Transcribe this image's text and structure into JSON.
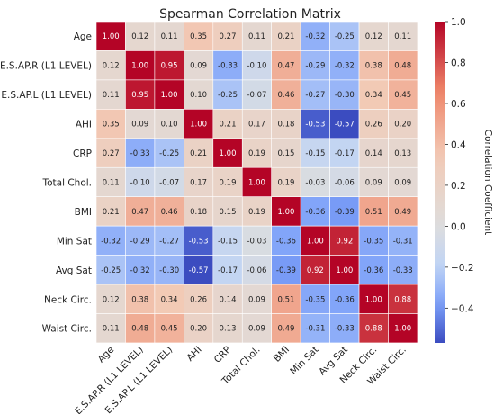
{
  "chart_data": {
    "type": "heatmap",
    "title": "Spearman Correlation Matrix",
    "labels": [
      "Age",
      "E.S.AP.R (L1 LEVEL)",
      "E.S.AP.L (L1 LEVEL)",
      "AHI",
      "CRP",
      "Total Chol.",
      "BMI",
      "Min Sat",
      "Avg Sat",
      "Neck Circ.",
      "Waist Circ."
    ],
    "values": [
      [
        1.0,
        0.12,
        0.11,
        0.35,
        0.27,
        0.11,
        0.21,
        -0.32,
        -0.25,
        0.12,
        0.11
      ],
      [
        0.12,
        1.0,
        0.95,
        0.09,
        -0.33,
        -0.1,
        0.47,
        -0.29,
        -0.32,
        0.38,
        0.48
      ],
      [
        0.11,
        0.95,
        1.0,
        0.1,
        -0.25,
        -0.07,
        0.46,
        -0.27,
        -0.3,
        0.34,
        0.45
      ],
      [
        0.35,
        0.09,
        0.1,
        1.0,
        0.21,
        0.17,
        0.18,
        -0.53,
        -0.57,
        0.26,
        0.2
      ],
      [
        0.27,
        -0.33,
        -0.25,
        0.21,
        1.0,
        0.19,
        0.15,
        -0.15,
        -0.17,
        0.14,
        0.13
      ],
      [
        0.11,
        -0.1,
        -0.07,
        0.17,
        0.19,
        1.0,
        0.19,
        -0.03,
        -0.06,
        0.09,
        0.09
      ],
      [
        0.21,
        0.47,
        0.46,
        0.18,
        0.15,
        0.19,
        1.0,
        -0.36,
        -0.39,
        0.51,
        0.49
      ],
      [
        -0.32,
        -0.29,
        -0.27,
        -0.53,
        -0.15,
        -0.03,
        -0.36,
        1.0,
        0.92,
        -0.35,
        -0.31
      ],
      [
        -0.25,
        -0.32,
        -0.3,
        -0.57,
        -0.17,
        -0.06,
        -0.39,
        0.92,
        1.0,
        -0.36,
        -0.33
      ],
      [
        0.12,
        0.38,
        0.34,
        0.26,
        0.14,
        0.09,
        0.51,
        -0.35,
        -0.36,
        1.0,
        0.88
      ],
      [
        0.11,
        0.48,
        0.45,
        0.2,
        0.13,
        0.09,
        0.49,
        -0.31,
        -0.33,
        0.88,
        1.0
      ]
    ],
    "value_labels": [
      [
        "1.00",
        "0.12",
        "0.11",
        "0.35",
        "0.27",
        "0.11",
        "0.21",
        "-0.32",
        "-0.25",
        "0.12",
        "0.11"
      ],
      [
        "0.12",
        "1.00",
        "0.95",
        "0.09",
        "-0.33",
        "-0.10",
        "0.47",
        "-0.29",
        "-0.32",
        "0.38",
        "0.48"
      ],
      [
        "0.11",
        "0.95",
        "1.00",
        "0.10",
        "-0.25",
        "-0.07",
        "0.46",
        "-0.27",
        "-0.30",
        "0.34",
        "0.45"
      ],
      [
        "0.35",
        "0.09",
        "0.10",
        "1.00",
        "0.21",
        "0.17",
        "0.18",
        "-0.53",
        "-0.57",
        "0.26",
        "0.20"
      ],
      [
        "0.27",
        "-0.33",
        "-0.25",
        "0.21",
        "1.00",
        "0.19",
        "0.15",
        "-0.15",
        "-0.17",
        "0.14",
        "0.13"
      ],
      [
        "0.11",
        "-0.10",
        "-0.07",
        "0.17",
        "0.19",
        "1.00",
        "0.19",
        "-0.03",
        "-0.06",
        "0.09",
        "0.09"
      ],
      [
        "0.21",
        "0.47",
        "0.46",
        "0.18",
        "0.15",
        "0.19",
        "1.00",
        "-0.36",
        "-0.39",
        "0.51",
        "0.49"
      ],
      [
        "-0.32",
        "-0.29",
        "-0.27",
        "-0.53",
        "-0.15",
        "-0.03",
        "-0.36",
        "1.00",
        "0.92",
        "-0.35",
        "-0.31"
      ],
      [
        "-0.25",
        "-0.32",
        "-0.30",
        "-0.57",
        "-0.17",
        "-0.06",
        "-0.39",
        "0.92",
        "1.00",
        "-0.36",
        "-0.33"
      ],
      [
        "0.12",
        "0.38",
        "0.34",
        "0.26",
        "0.14",
        "0.09",
        "0.51",
        "-0.35",
        "-0.36",
        "1.00",
        "0.88"
      ],
      [
        "0.11",
        "0.48",
        "0.45",
        "0.20",
        "0.13",
        "0.09",
        "0.49",
        "-0.31",
        "-0.33",
        "0.88",
        "1.00"
      ]
    ],
    "colorbar": {
      "label": "Correlation Coefficient",
      "range": [
        -0.57,
        1.0
      ],
      "ticks": [
        1.0,
        0.8,
        0.6,
        0.4,
        0.2,
        0.0,
        -0.2,
        -0.4
      ],
      "tick_labels": [
        "1.0",
        "0.8",
        "0.6",
        "0.4",
        "0.2",
        "0.0",
        "−0.2",
        "−0.4"
      ],
      "colormap": "coolwarm",
      "colormap_stops": [
        "#3b4cc0",
        "#7b9ff9",
        "#c0d4f5",
        "#dddddd",
        "#f2cbb7",
        "#ee8468",
        "#b40426"
      ]
    },
    "grid": false
  }
}
